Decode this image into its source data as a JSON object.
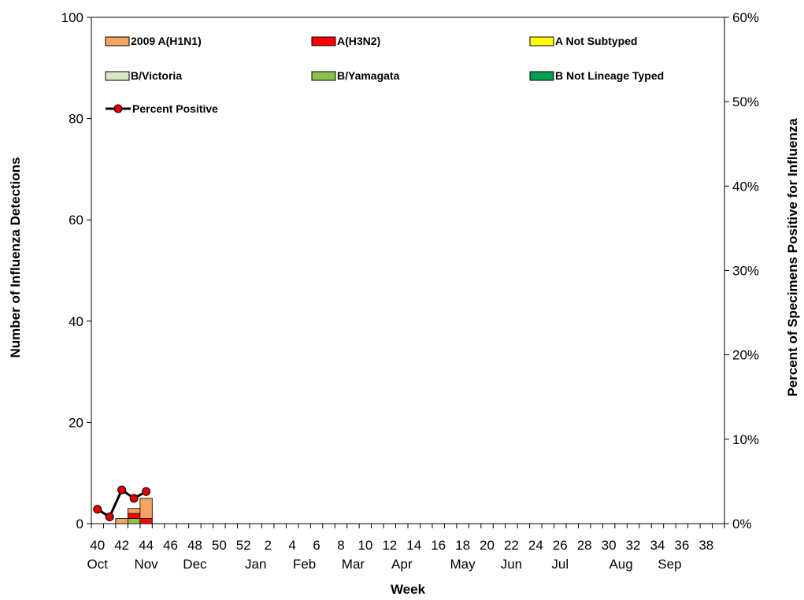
{
  "chart_data": {
    "type": "bar",
    "stacked": true,
    "xlabel": "Week",
    "ylabel_left": "Number of Influenza Detections",
    "ylabel_right": "Percent of Specimens Positive for Influenza",
    "ylim_left": [
      0,
      100
    ],
    "ylim_right": [
      0,
      60
    ],
    "yticks_left": [
      "0",
      "20",
      "40",
      "60",
      "80",
      "100"
    ],
    "yticks_right": [
      "0%",
      "10%",
      "20%",
      "30%",
      "40%",
      "50%",
      "60%"
    ],
    "grid": false,
    "legend_position": "top-left (inside plot)",
    "weeks": [
      "40",
      "41",
      "42",
      "43",
      "44",
      "45",
      "46",
      "47",
      "48",
      "49",
      "50",
      "51",
      "52",
      "1",
      "2",
      "3",
      "4",
      "5",
      "6",
      "7",
      "8",
      "9",
      "10",
      "11",
      "12",
      "13",
      "14",
      "15",
      "16",
      "17",
      "18",
      "19",
      "20",
      "21",
      "22",
      "23",
      "24",
      "25",
      "26",
      "27",
      "28",
      "29",
      "30",
      "31",
      "32",
      "33",
      "34",
      "35",
      "36",
      "37",
      "38",
      "39"
    ],
    "week_tick_labels": [
      "40",
      "42",
      "44",
      "46",
      "48",
      "50",
      "52",
      "2",
      "4",
      "6",
      "8",
      "10",
      "12",
      "14",
      "16",
      "18",
      "20",
      "22",
      "24",
      "26",
      "28",
      "30",
      "32",
      "34",
      "36",
      "38"
    ],
    "month_labels": [
      {
        "label": "Oct",
        "week_index": 0
      },
      {
        "label": "Nov",
        "week_index": 4
      },
      {
        "label": "Dec",
        "week_index": 8
      },
      {
        "label": "Jan",
        "week_index": 13
      },
      {
        "label": "Feb",
        "week_index": 17
      },
      {
        "label": "Mar",
        "week_index": 21
      },
      {
        "label": "Apr",
        "week_index": 25
      },
      {
        "label": "May",
        "week_index": 30
      },
      {
        "label": "Jun",
        "week_index": 34
      },
      {
        "label": "Jul",
        "week_index": 38
      },
      {
        "label": "Aug",
        "week_index": 43
      },
      {
        "label": "Sep",
        "week_index": 47
      }
    ],
    "series": [
      {
        "name": "2009 A(H1N1)",
        "color": "#f4a460",
        "values": [
          0,
          0,
          1,
          1,
          4
        ]
      },
      {
        "name": "A(H3N2)",
        "color": "#ff0000",
        "values": [
          0,
          0,
          0,
          1,
          1
        ]
      },
      {
        "name": "A Not Subtyped",
        "color": "#ffff00",
        "values": [
          0,
          0,
          0,
          0,
          0
        ]
      },
      {
        "name": "B/Victoria",
        "color": "#d6e8c0",
        "values": [
          0,
          0,
          0,
          0,
          0
        ]
      },
      {
        "name": "B/Yamagata",
        "color": "#8bc34a",
        "values": [
          0,
          0,
          0,
          1,
          0
        ]
      },
      {
        "name": "B Not Lineage Typed",
        "color": "#00a050",
        "values": [
          0,
          0,
          0,
          0,
          0
        ]
      }
    ],
    "line_series": {
      "name": "Percent Positive",
      "axis": "right",
      "color": "#000000",
      "marker_color": "#e00000",
      "values": [
        1.7,
        0.8,
        4.0,
        3.0,
        3.8
      ]
    }
  }
}
